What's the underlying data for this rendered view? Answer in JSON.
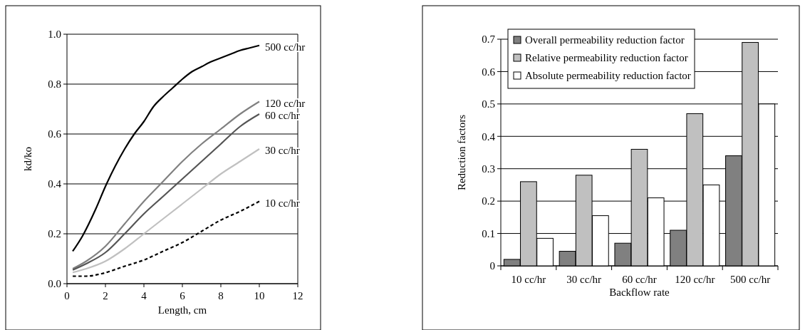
{
  "chart_data": [
    {
      "type": "line",
      "xlabel": "Length, cm",
      "ylabel": "kd/ko",
      "xlim": [
        0,
        12
      ],
      "xticks": [
        0,
        2,
        4,
        6,
        8,
        10,
        12
      ],
      "ylim": [
        0,
        1
      ],
      "yticks": [
        {
          "value": 0,
          "label": "0.0"
        },
        {
          "value": 0.2,
          "label": "0.2"
        },
        {
          "value": 0.4,
          "label": "0.4"
        },
        {
          "value": 0.6,
          "label": "0.6"
        },
        {
          "value": 0.8,
          "label": "0.8"
        },
        {
          "value": 1,
          "label": "1.0"
        }
      ],
      "grid": "y",
      "legend": false,
      "marker": "none",
      "series": [
        {
          "name": "500 cc/hr",
          "color": "#000000",
          "line_style": "solid",
          "x": [
            0.3,
            0.8,
            1.5,
            2,
            2.5,
            3,
            3.5,
            4,
            4.5,
            5,
            5.5,
            6,
            6.5,
            7,
            7.5,
            8,
            8.5,
            9,
            9.5,
            10
          ],
          "values": [
            0.13,
            0.19,
            0.3,
            0.39,
            0.47,
            0.54,
            0.6,
            0.65,
            0.71,
            0.75,
            0.785,
            0.82,
            0.85,
            0.87,
            0.89,
            0.905,
            0.92,
            0.935,
            0.945,
            0.955
          ]
        },
        {
          "name": "120 cc/hr",
          "color": "#808080",
          "line_style": "solid",
          "x": [
            0.3,
            1,
            2,
            3,
            4,
            5,
            6,
            7,
            8,
            9,
            10
          ],
          "values": [
            0.06,
            0.09,
            0.15,
            0.24,
            0.33,
            0.41,
            0.49,
            0.56,
            0.62,
            0.68,
            0.73
          ]
        },
        {
          "name": "60 cc/hr",
          "color": "#555555",
          "line_style": "solid",
          "x": [
            0.3,
            1,
            2,
            3,
            4,
            5,
            6,
            7,
            8,
            9,
            10
          ],
          "values": [
            0.055,
            0.08,
            0.125,
            0.2,
            0.28,
            0.35,
            0.42,
            0.49,
            0.56,
            0.63,
            0.68
          ]
        },
        {
          "name": "30 cc/hr",
          "color": "#c0c0c0",
          "line_style": "solid",
          "x": [
            0.3,
            1,
            2,
            3,
            4,
            5,
            6,
            7,
            8,
            9,
            10
          ],
          "values": [
            0.045,
            0.06,
            0.09,
            0.14,
            0.2,
            0.26,
            0.32,
            0.38,
            0.44,
            0.49,
            0.54
          ]
        },
        {
          "name": "10 cc/hr",
          "color": "#000000",
          "line_style": "dashed",
          "x": [
            0.3,
            1,
            1.8,
            3,
            4,
            5,
            6,
            7,
            8,
            9,
            10
          ],
          "values": [
            0.03,
            0.03,
            0.04,
            0.07,
            0.095,
            0.13,
            0.165,
            0.21,
            0.255,
            0.29,
            0.33
          ]
        }
      ]
    },
    {
      "type": "bar",
      "xlabel": "Backflow rate",
      "ylabel": "Reduction factors",
      "categories": [
        "10 cc/hr",
        "30 cc/hr",
        "60 cc/hr",
        "120 cc/hr",
        "500 cc/hr"
      ],
      "ylim": [
        0,
        0.7
      ],
      "yticks": [
        0,
        0.1,
        0.2,
        0.3,
        0.4,
        0.5,
        0.6,
        0.7
      ],
      "grid": "y",
      "legend": "top left",
      "series": [
        {
          "name": "Overall permeability reduction factor",
          "color": "#808080",
          "values": [
            0.02,
            0.045,
            0.07,
            0.11,
            0.34
          ]
        },
        {
          "name": "Relative permeability reduction factor",
          "color": "#c0c0c0",
          "values": [
            0.26,
            0.28,
            0.36,
            0.47,
            0.69
          ]
        },
        {
          "name": "Absolute permeability reduction factor",
          "color": "#ffffff",
          "values": [
            0.085,
            0.155,
            0.21,
            0.25,
            0.5
          ]
        }
      ]
    }
  ]
}
